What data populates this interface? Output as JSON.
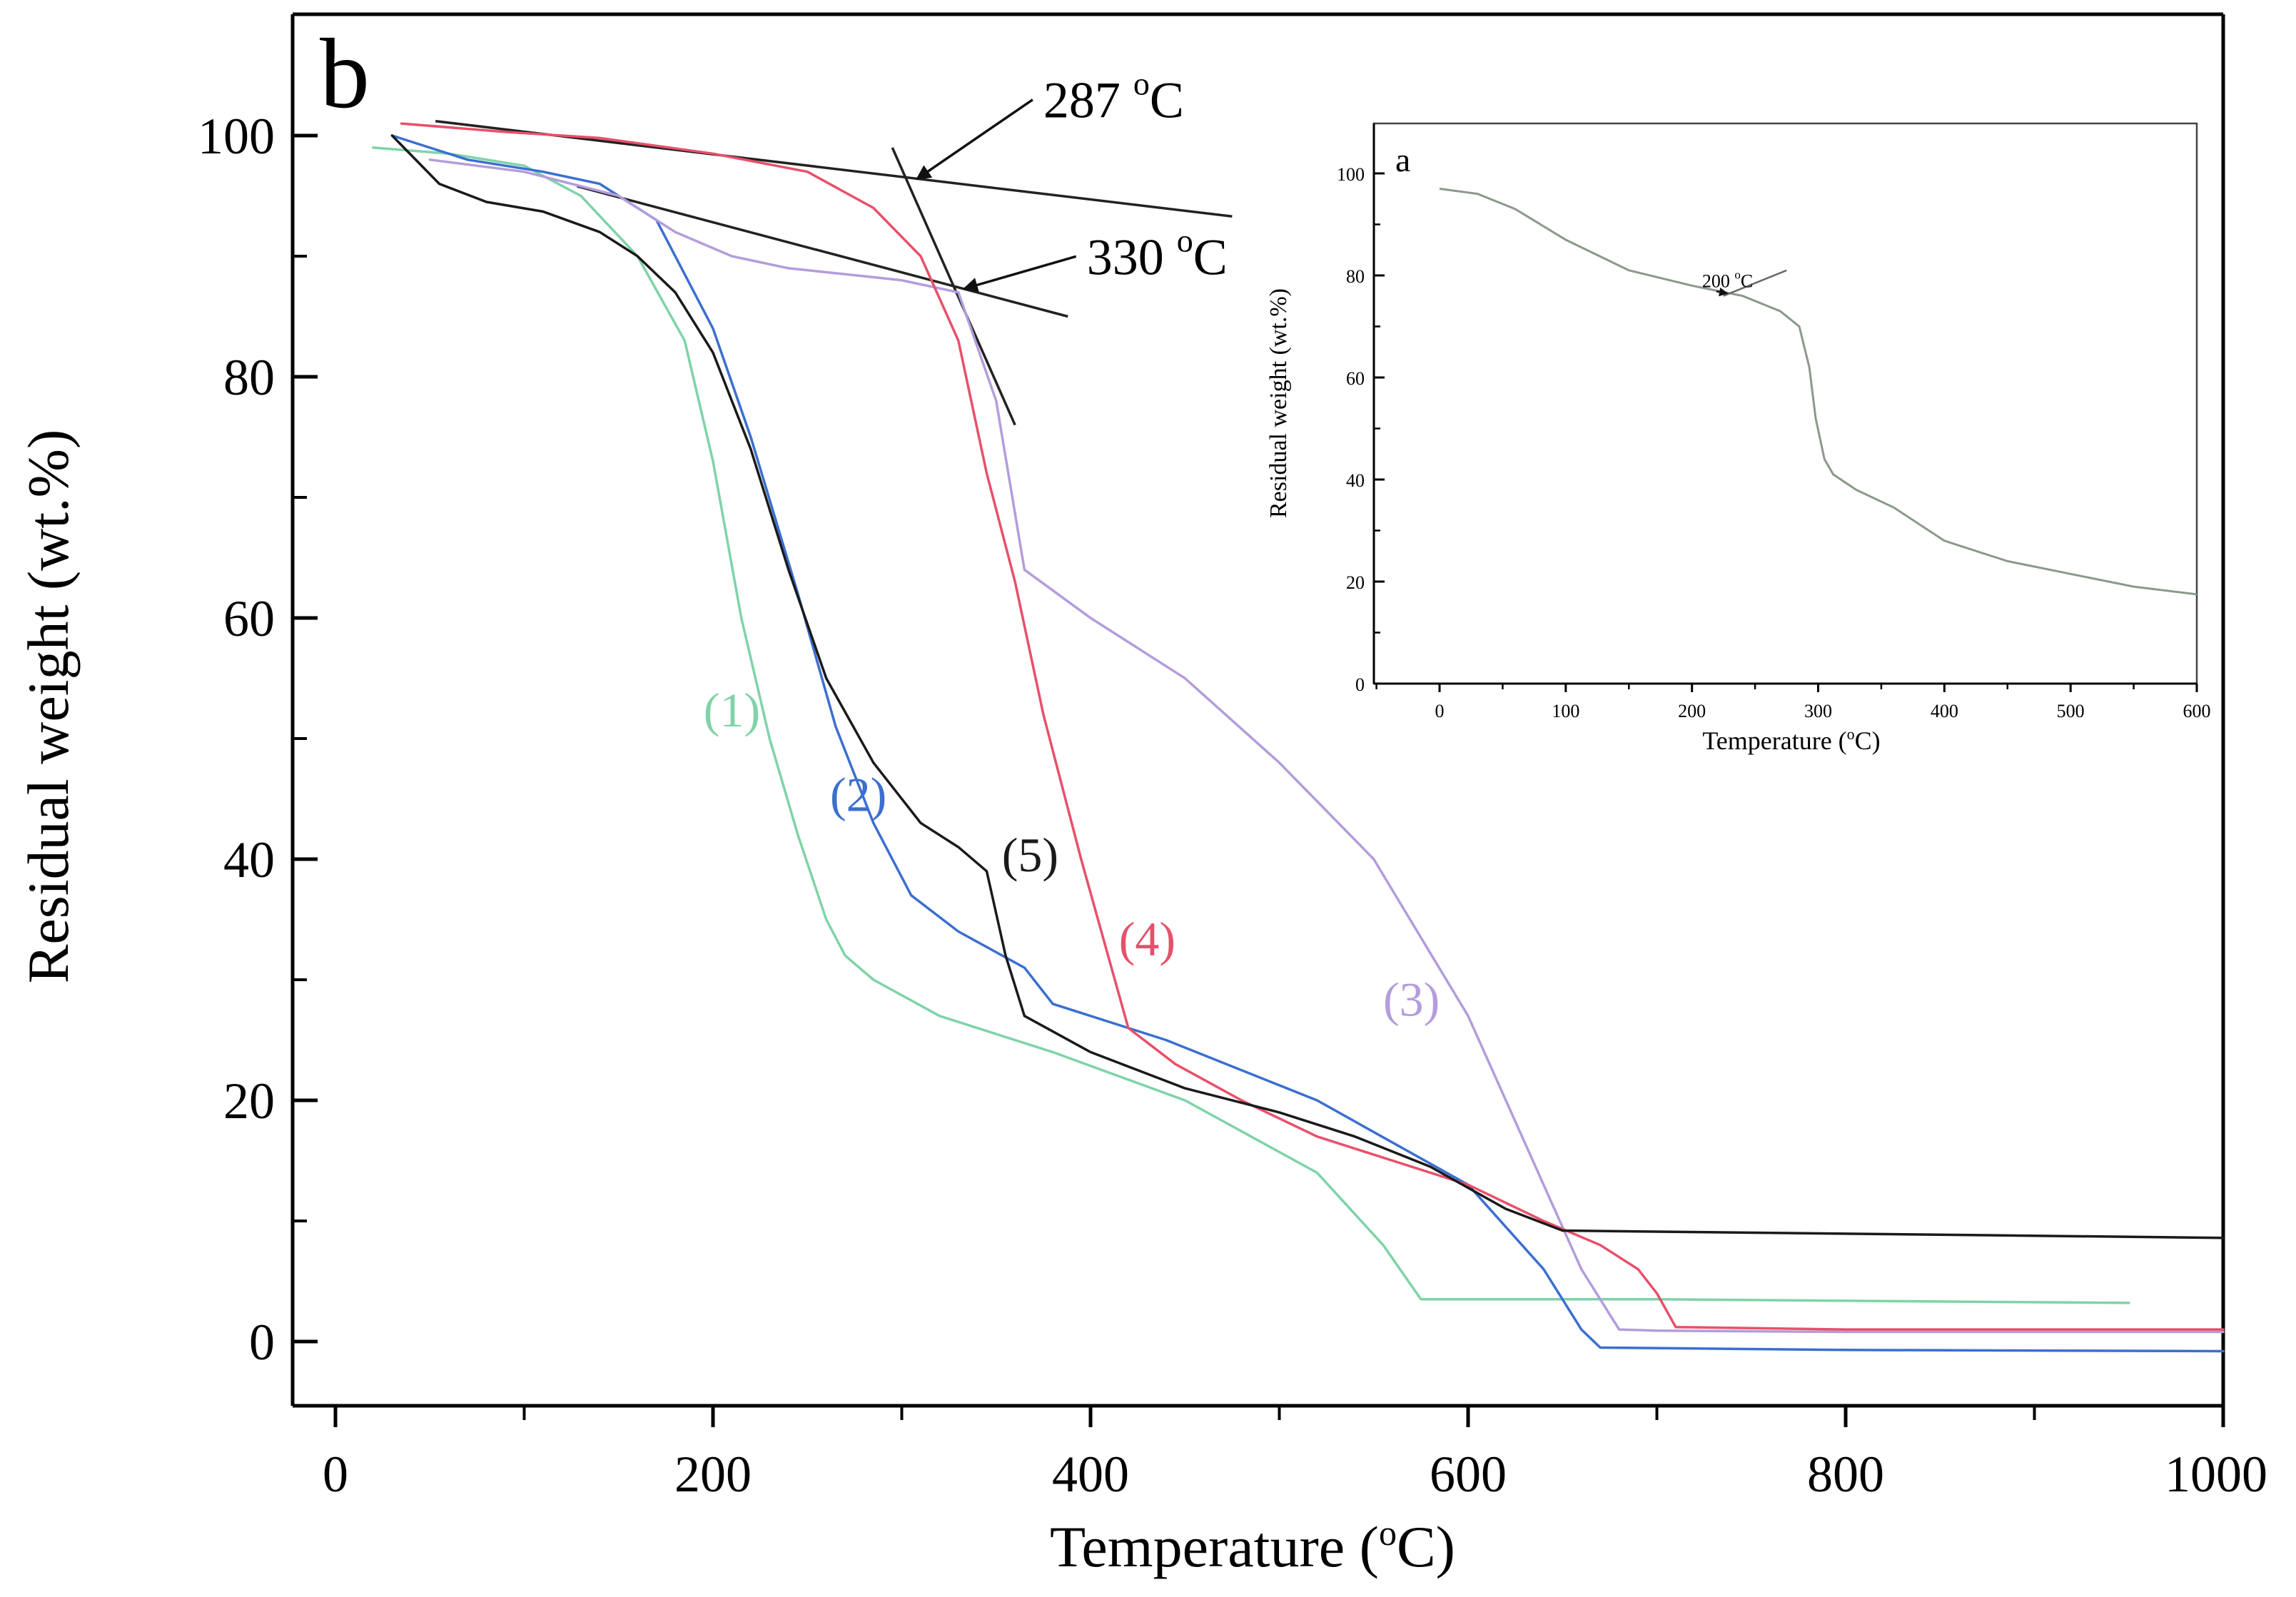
{
  "chart_data": [
    {
      "id": "main",
      "type": "line",
      "panel_label": "b",
      "xlabel": "Temperature (°C)",
      "xlabel_main": "Temperature (",
      "xlabel_unit": "o",
      "xlabel_tail": "C)",
      "ylabel": "Residual weight (wt.%)",
      "xlim": [
        -20,
        1000
      ],
      "ylim": [
        -5,
        110
      ],
      "xticks": [
        0,
        200,
        400,
        600,
        800,
        1000
      ],
      "yticks": [
        0,
        20,
        40,
        60,
        80,
        100
      ],
      "series": [
        {
          "name": "(1)",
          "color": "#7fd3a8",
          "label_at": [
            210,
            51
          ],
          "x": [
            20,
            60,
            100,
            130,
            160,
            185,
            200,
            215,
            230,
            245,
            260,
            270,
            285,
            320,
            380,
            450,
            520,
            555,
            575,
            700,
            950
          ],
          "y": [
            99,
            98.5,
            97.5,
            95,
            90,
            83,
            73,
            60,
            50,
            42,
            35,
            32,
            30,
            27,
            24,
            20,
            14,
            8,
            3.5,
            3.5,
            3.2
          ]
        },
        {
          "name": "(2)",
          "color": "#3b6fd0",
          "label_at": [
            277,
            44
          ],
          "x": [
            30,
            70,
            110,
            140,
            170,
            200,
            220,
            245,
            265,
            285,
            305,
            330,
            365,
            380,
            440,
            520,
            600,
            640,
            660,
            670,
            800,
            1000
          ],
          "y": [
            100,
            98,
            97,
            96,
            93,
            84,
            75,
            62,
            51,
            43,
            37,
            34,
            31,
            28,
            25,
            20,
            13,
            6,
            1,
            -0.5,
            -0.7,
            -0.8
          ]
        },
        {
          "name": "(3)",
          "color": "#b39ddb",
          "label_at": [
            570,
            27
          ],
          "x": [
            50,
            100,
            150,
            180,
            210,
            240,
            270,
            300,
            330,
            350,
            365,
            400,
            450,
            500,
            550,
            600,
            620,
            640,
            660,
            680,
            700,
            800,
            1000
          ],
          "y": [
            98,
            97,
            95,
            92,
            90,
            89,
            88.5,
            88,
            87,
            78,
            64,
            60,
            55,
            48,
            40,
            27,
            20,
            13,
            6,
            1,
            0.9,
            0.8,
            0.8
          ]
        },
        {
          "name": "(4)",
          "color": "#e8506a",
          "label_at": [
            430,
            32
          ],
          "x": [
            35,
            90,
            140,
            200,
            250,
            285,
            310,
            330,
            345,
            360,
            375,
            395,
            420,
            445,
            480,
            520,
            560,
            600,
            640,
            670,
            690,
            700,
            710,
            800,
            1000
          ],
          "y": [
            101,
            100.3,
            99.8,
            98.5,
            97,
            94,
            90,
            83,
            72,
            63,
            52,
            40,
            26,
            23,
            20,
            17,
            15,
            13,
            10,
            8,
            6,
            4,
            1.2,
            1,
            1
          ]
        },
        {
          "name": "(5)",
          "color": "#1a1a1a",
          "label_at": [
            368,
            39
          ],
          "x": [
            30,
            55,
            80,
            110,
            140,
            160,
            180,
            200,
            220,
            240,
            260,
            285,
            310,
            330,
            345,
            355,
            365,
            400,
            450,
            500,
            540,
            580,
            620,
            650,
            1000
          ],
          "y": [
            100,
            96,
            94.5,
            93.7,
            92,
            90,
            87,
            82,
            74,
            64,
            55,
            48,
            43,
            41,
            39,
            32,
            27,
            24,
            21,
            19,
            17,
            14.5,
            11,
            9.2,
            8.6
          ]
        }
      ],
      "annotations": [
        {
          "id": "t287",
          "value": "287",
          "unit": "o",
          "tail": "C",
          "text_at": [
            375,
            101.5
          ],
          "arrow_to": [
            305,
            96.4
          ]
        },
        {
          "id": "t330",
          "value": "330",
          "unit": "o",
          "tail": "C",
          "text_at": [
            398,
            88.5
          ],
          "arrow_to": [
            330,
            87.3
          ]
        }
      ],
      "tangents": [
        {
          "from": [
            53,
            101.2
          ],
          "to": [
            475,
            93.3
          ]
        },
        {
          "from": [
            295,
            99
          ],
          "to": [
            360,
            76
          ]
        },
        {
          "from": [
            128,
            95.8
          ],
          "to": [
            388,
            85
          ]
        }
      ]
    },
    {
      "id": "inset",
      "type": "line",
      "panel_label": "a",
      "xlabel": "Temperature (°C)",
      "xlabel_main": "Temperature (",
      "xlabel_unit": "o",
      "xlabel_tail": "C)",
      "ylabel": "Residual weight (wt.%)",
      "xlim": [
        -50,
        600
      ],
      "ylim": [
        0,
        110
      ],
      "xticks": [
        0,
        100,
        200,
        300,
        400,
        500,
        600
      ],
      "yticks": [
        0,
        20,
        40,
        60,
        80,
        100
      ],
      "annotation": {
        "value": "200",
        "unit": "o",
        "tail": "C",
        "text_at": [
          208,
          78
        ],
        "arrow_to": [
          228,
          76.5
        ]
      },
      "tangent": {
        "from": [
          225,
          76
        ],
        "to": [
          275,
          81
        ]
      },
      "series": [
        {
          "name": "a",
          "color": "#8a9a8a",
          "x": [
            0,
            30,
            60,
            100,
            150,
            200,
            240,
            270,
            285,
            293,
            298,
            305,
            312,
            330,
            360,
            400,
            450,
            500,
            550,
            600
          ],
          "y": [
            97,
            96,
            93,
            87,
            81,
            78,
            76,
            73,
            70,
            62,
            52,
            44,
            41,
            38,
            34.5,
            28,
            24,
            21.5,
            19,
            17.5
          ]
        }
      ]
    }
  ]
}
